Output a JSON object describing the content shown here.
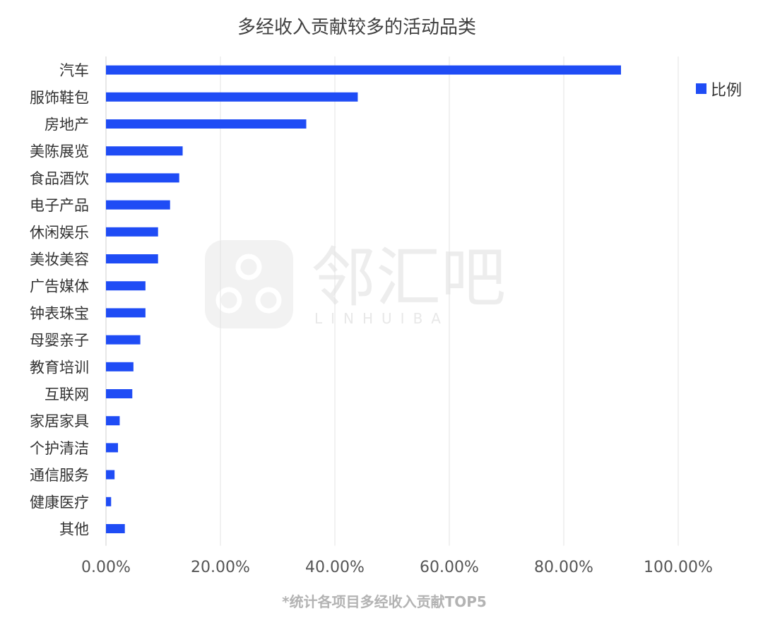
{
  "chart_data": {
    "type": "bar",
    "orientation": "horizontal",
    "title": "多经收入贡献较多的活动品类",
    "categories": [
      "汽车",
      "服饰鞋包",
      "房地产",
      "美陈展览",
      "食品酒饮",
      "电子产品",
      "休闲娱乐",
      "美妆美容",
      "广告媒体",
      "钟表珠宝",
      "母婴亲子",
      "教育培训",
      "互联网",
      "家居家具",
      "个护清洁",
      "通信服务",
      "健康医疗",
      "其他"
    ],
    "series": [
      {
        "name": "比例",
        "color": "#1f4cf5",
        "values": [
          90.0,
          44.0,
          35.0,
          13.4,
          12.8,
          11.2,
          9.1,
          9.1,
          6.9,
          6.9,
          6.0,
          4.8,
          4.6,
          2.4,
          2.1,
          1.5,
          0.9,
          3.3
        ]
      }
    ],
    "xlim": [
      0,
      100
    ],
    "xticks": [
      "0.00%",
      "20.00%",
      "40.00%",
      "60.00%",
      "80.00%",
      "100.00%"
    ],
    "grid": true,
    "legend": "top-right",
    "note": "*统计各项目多经收入贡献TOP5"
  },
  "watermark": {
    "brand": "邻汇吧",
    "sub": "LINHUIBA"
  }
}
